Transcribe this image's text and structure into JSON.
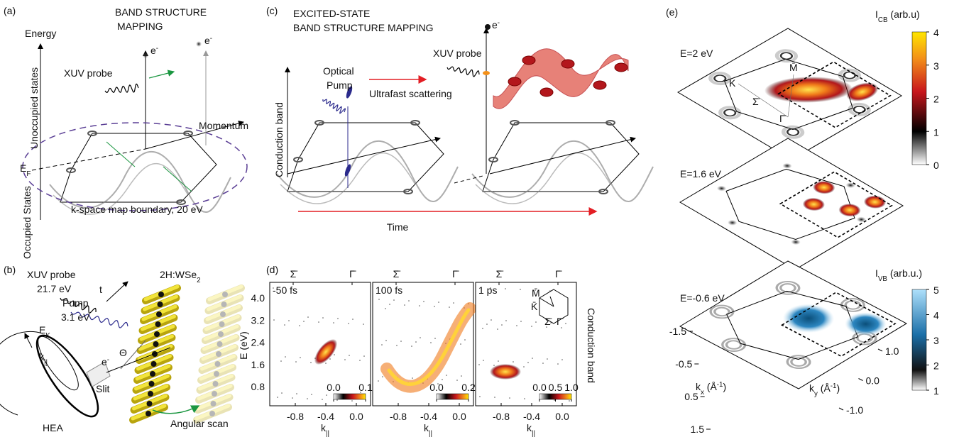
{
  "panel_a": {
    "label": "(a)",
    "title": [
      "BAND STRUCTURE",
      "MAPPING"
    ],
    "energy_axis": "Energy",
    "momentum_axis": "Momentum",
    "unoccupied": "Unoccupied states",
    "occupied": "Occupied States",
    "fermi": [
      {
        "t": "E"
      },
      {
        "sub": "F"
      }
    ],
    "probe": "XUV probe",
    "electrons": [
      [
        {
          "t": "e"
        },
        {
          "sup": "-"
        }
      ],
      [
        {
          "t": "e"
        },
        {
          "sup": "-"
        }
      ]
    ],
    "boundary": "k-space map boundary, 20 eV"
  },
  "panel_b": {
    "label": "(b)",
    "probe": "XUV probe",
    "probe_energy": "21.7 eV",
    "delay": "t",
    "pump": "Pump",
    "pump_energy": "3.1 eV",
    "sample": [
      {
        "t": "2H:WSe"
      },
      {
        "sub": "2"
      }
    ],
    "kinetic_energy": [
      {
        "t": "E"
      },
      {
        "sub": "K"
      }
    ],
    "momentum": [
      {
        "t": "k"
      },
      {
        "sub": "||"
      }
    ],
    "electron": [
      {
        "t": "e"
      },
      {
        "sup": "-"
      }
    ],
    "angle": "Θ",
    "slit": "Slit",
    "scan": "Angular scan",
    "analyzer": "HEA"
  },
  "panel_c": {
    "label": "(c)",
    "title": [
      "EXCITED-STATE",
      "BAND STRUCTURE MAPPING"
    ],
    "band": "Conduction band",
    "pump": [
      "Optical",
      "Pump"
    ],
    "scattering": "Ultrafast scattering",
    "probe": "XUV probe",
    "electron": [
      {
        "t": "e"
      },
      {
        "sup": "-"
      }
    ],
    "time": "Time"
  },
  "panel_d": {
    "label": "(d)",
    "y_label": "E (eV)",
    "yticks": [
      {
        "value": 4.0,
        "label": "4.0"
      },
      3.2,
      2.4,
      1.6,
      0.8
    ],
    "xticks": [
      -0.8,
      -0.4,
      {
        "value": 0,
        "label": "0.0"
      }
    ],
    "x_label": [
      {
        "t": "k"
      },
      {
        "sub": "||"
      }
    ],
    "top_labels": [
      "Σ̄",
      "Γ̄"
    ],
    "side_label": "Conduction band",
    "plots": [
      {
        "time": "-50 fs",
        "colorbar": [
          {
            "value": 0,
            "label": "0.0"
          },
          0.1
        ]
      },
      {
        "time": "100 fs",
        "colorbar": [
          {
            "value": 0,
            "label": "0.0"
          },
          0.2
        ]
      },
      {
        "time": "1 ps",
        "colorbar": [
          {
            "value": 0,
            "label": "0.0"
          },
          0.5,
          {
            "value": 1,
            "label": "1.0"
          }
        ]
      }
    ],
    "inset": [
      "M̄",
      "K̄",
      "Σ̄",
      "Γ̄"
    ]
  },
  "panel_e": {
    "label": "(e)",
    "energies": [
      "E=2 eV",
      "E=1.6 eV",
      "E=-0.6 eV"
    ],
    "points": [
      "K",
      "M̄",
      "Σ̄",
      "Γ̄"
    ],
    "cb_title": [
      {
        "t": "I"
      },
      {
        "sub": "CB"
      },
      {
        "t": " (arb.u)"
      }
    ],
    "cb_ticks": [
      0,
      1,
      2,
      3,
      4
    ],
    "vb_title": [
      {
        "t": "I"
      },
      {
        "sub": "VB"
      },
      {
        "t": " (arb.u.)"
      }
    ],
    "vb_ticks": [
      1,
      2,
      3,
      4,
      5
    ],
    "kx_label": [
      {
        "t": "k"
      },
      {
        "sub": "x"
      },
      {
        "t": " (Å"
      },
      {
        "sup": "-1"
      },
      {
        "t": ")"
      }
    ],
    "kx_ticks": [
      -1.5,
      -0.5,
      0.5,
      1.5
    ],
    "ky_label": [
      {
        "t": "k"
      },
      {
        "sub": "y"
      },
      {
        "t": " (Å"
      },
      {
        "sup": "-1"
      },
      {
        "t": ")"
      }
    ],
    "ky_ticks": [
      {
        "value": 1,
        "label": "1.0"
      },
      {
        "value": 0,
        "label": "0.0"
      },
      {
        "value": -1,
        "label": "-1.0"
      }
    ]
  }
}
